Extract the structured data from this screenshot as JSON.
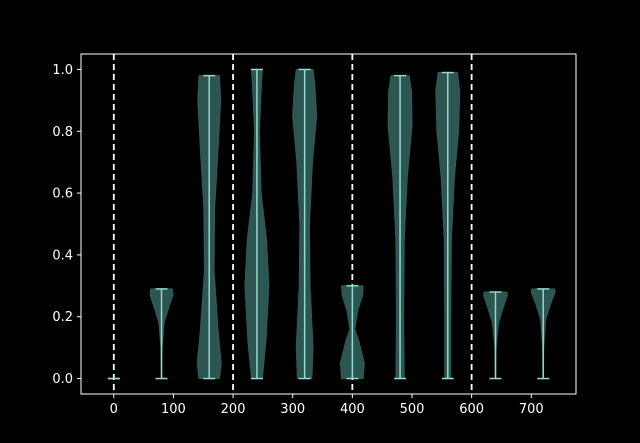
{
  "chart_data": {
    "type": "violin",
    "title": "",
    "xlabel": "",
    "ylabel": "",
    "xlim": [
      -55,
      775
    ],
    "ylim": [
      -0.05,
      1.05
    ],
    "x_ticks": [
      0,
      100,
      200,
      300,
      400,
      500,
      600,
      700
    ],
    "y_ticks": [
      0.0,
      0.2,
      0.4,
      0.6,
      0.8,
      1.0
    ],
    "x_tick_labels": [
      "0",
      "100",
      "200",
      "300",
      "400",
      "500",
      "600",
      "700"
    ],
    "y_tick_labels": [
      "0.0",
      "0.2",
      "0.4",
      "0.6",
      "0.8",
      "1.0"
    ],
    "vertical_lines_x": [
      0,
      200,
      400,
      600
    ],
    "grid": false,
    "colors": {
      "background": "#000000",
      "axes": "#ffffff",
      "violin_fill": "#2f5a55",
      "violin_line": "#8fdcc9",
      "vline": "#ffffff"
    },
    "violins": [
      {
        "x": 0,
        "min": 0.0,
        "max": 0.0,
        "profile": [
          [
            0.0,
            1.0
          ]
        ]
      },
      {
        "x": 80,
        "min": 0.0,
        "max": 0.29,
        "profile": [
          [
            0.0,
            0.02
          ],
          [
            0.1,
            0.05
          ],
          [
            0.18,
            0.22
          ],
          [
            0.23,
            0.6
          ],
          [
            0.27,
            0.95
          ],
          [
            0.29,
            0.9
          ]
        ]
      },
      {
        "x": 160,
        "min": 0.0,
        "max": 0.98,
        "profile": [
          [
            0.0,
            0.85
          ],
          [
            0.05,
            1.0
          ],
          [
            0.15,
            0.75
          ],
          [
            0.35,
            0.4
          ],
          [
            0.55,
            0.45
          ],
          [
            0.75,
            0.75
          ],
          [
            0.9,
            0.95
          ],
          [
            0.98,
            0.85
          ]
        ]
      },
      {
        "x": 240,
        "min": 0.0,
        "max": 1.0,
        "profile": [
          [
            0.0,
            0.45
          ],
          [
            0.12,
            0.75
          ],
          [
            0.3,
            1.0
          ],
          [
            0.45,
            0.8
          ],
          [
            0.6,
            0.35
          ],
          [
            0.8,
            0.2
          ],
          [
            0.93,
            0.35
          ],
          [
            1.0,
            0.45
          ]
        ]
      },
      {
        "x": 320,
        "min": 0.0,
        "max": 1.0,
        "profile": [
          [
            0.0,
            0.6
          ],
          [
            0.1,
            0.7
          ],
          [
            0.3,
            0.45
          ],
          [
            0.5,
            0.4
          ],
          [
            0.7,
            0.65
          ],
          [
            0.85,
            1.0
          ],
          [
            0.95,
            0.85
          ],
          [
            1.0,
            0.7
          ]
        ]
      },
      {
        "x": 400,
        "min": 0.0,
        "max": 0.3,
        "profile": [
          [
            0.0,
            0.9
          ],
          [
            0.05,
            1.0
          ],
          [
            0.12,
            0.55
          ],
          [
            0.16,
            0.2
          ],
          [
            0.22,
            0.45
          ],
          [
            0.27,
            0.85
          ],
          [
            0.3,
            0.9
          ]
        ]
      },
      {
        "x": 480,
        "min": 0.0,
        "max": 0.98,
        "profile": [
          [
            0.0,
            0.35
          ],
          [
            0.2,
            0.3
          ],
          [
            0.45,
            0.35
          ],
          [
            0.65,
            0.6
          ],
          [
            0.82,
            1.0
          ],
          [
            0.93,
            0.95
          ],
          [
            0.98,
            0.75
          ]
        ]
      },
      {
        "x": 560,
        "min": 0.0,
        "max": 0.99,
        "profile": [
          [
            0.0,
            0.25
          ],
          [
            0.2,
            0.25
          ],
          [
            0.45,
            0.3
          ],
          [
            0.65,
            0.55
          ],
          [
            0.8,
            0.9
          ],
          [
            0.93,
            1.0
          ],
          [
            0.99,
            0.8
          ]
        ]
      },
      {
        "x": 640,
        "min": 0.0,
        "max": 0.28,
        "profile": [
          [
            0.0,
            0.02
          ],
          [
            0.1,
            0.05
          ],
          [
            0.18,
            0.25
          ],
          [
            0.23,
            0.65
          ],
          [
            0.27,
            1.0
          ],
          [
            0.28,
            0.95
          ]
        ]
      },
      {
        "x": 720,
        "min": 0.0,
        "max": 0.29,
        "profile": [
          [
            0.0,
            0.02
          ],
          [
            0.1,
            0.05
          ],
          [
            0.19,
            0.2
          ],
          [
            0.24,
            0.6
          ],
          [
            0.28,
            1.0
          ],
          [
            0.29,
            0.95
          ]
        ]
      }
    ]
  }
}
